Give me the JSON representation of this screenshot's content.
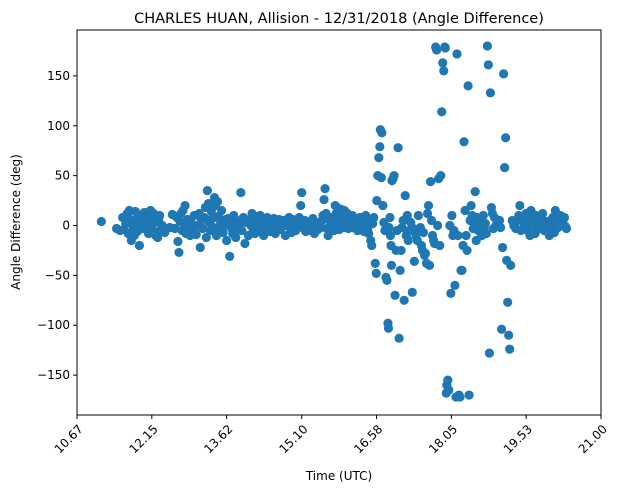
{
  "chart_data": {
    "type": "scatter",
    "title": "CHARLES HUAN, Allision - 12/31/2018 (Angle Difference)",
    "xlabel": "Time (UTC)",
    "ylabel": "Angle Difference (deg)",
    "xlim": [
      10.67,
      21.0
    ],
    "ylim": [
      -190,
      196
    ],
    "x_ticks": [
      "10.67",
      "12.15",
      "13.62",
      "15.10",
      "16.58",
      "18.05",
      "19.53",
      "21.00"
    ],
    "x_tick_values": [
      10.67,
      12.145,
      13.62,
      15.1,
      16.575,
      18.05,
      19.525,
      21.0
    ],
    "y_ticks": [
      -150,
      -100,
      -50,
      0,
      50,
      100,
      150
    ],
    "grid": false,
    "marker_color": "#1f77b4",
    "points": [
      [
        11.15,
        4
      ],
      [
        11.45,
        -3
      ],
      [
        11.52,
        -5
      ],
      [
        11.57,
        8
      ],
      [
        11.6,
        -4
      ],
      [
        11.63,
        2
      ],
      [
        11.66,
        12
      ],
      [
        11.68,
        -8
      ],
      [
        11.7,
        15
      ],
      [
        11.72,
        6
      ],
      [
        11.74,
        -15
      ],
      [
        11.76,
        3
      ],
      [
        11.78,
        -2
      ],
      [
        11.8,
        -10
      ],
      [
        11.82,
        14
      ],
      [
        11.84,
        5
      ],
      [
        11.86,
        -6
      ],
      [
        11.88,
        9
      ],
      [
        11.9,
        -20
      ],
      [
        11.92,
        2
      ],
      [
        11.94,
        11
      ],
      [
        11.96,
        -3
      ],
      [
        11.98,
        7
      ],
      [
        12.0,
        13
      ],
      [
        12.02,
        -1
      ],
      [
        12.04,
        4
      ],
      [
        12.06,
        10
      ],
      [
        12.08,
        -8
      ],
      [
        12.1,
        6
      ],
      [
        12.12,
        15
      ],
      [
        12.14,
        0
      ],
      [
        12.16,
        -5
      ],
      [
        12.18,
        12
      ],
      [
        12.2,
        3
      ],
      [
        12.22,
        -10
      ],
      [
        12.24,
        8
      ],
      [
        12.26,
        -12
      ],
      [
        12.28,
        5
      ],
      [
        12.3,
        10
      ],
      [
        12.32,
        -4
      ],
      [
        12.35,
        0
      ],
      [
        12.4,
        -7
      ],
      [
        12.5,
        -2
      ],
      [
        12.55,
        11
      ],
      [
        12.6,
        -3
      ],
      [
        12.64,
        8
      ],
      [
        12.66,
        -16
      ],
      [
        12.68,
        -27
      ],
      [
        12.7,
        4
      ],
      [
        12.72,
        12
      ],
      [
        12.74,
        -5
      ],
      [
        12.76,
        15
      ],
      [
        12.78,
        2
      ],
      [
        12.8,
        20
      ],
      [
        12.82,
        -8
      ],
      [
        12.85,
        6
      ],
      [
        12.88,
        -3
      ],
      [
        12.9,
        -10
      ],
      [
        12.92,
        3
      ],
      [
        12.95,
        -6
      ],
      [
        12.98,
        10
      ],
      [
        13.02,
        -9
      ],
      [
        13.05,
        0
      ],
      [
        13.08,
        12
      ],
      [
        13.1,
        -22
      ],
      [
        13.12,
        5
      ],
      [
        13.15,
        -3
      ],
      [
        13.18,
        8
      ],
      [
        13.2,
        18
      ],
      [
        13.22,
        -12
      ],
      [
        13.24,
        35
      ],
      [
        13.26,
        22
      ],
      [
        13.28,
        3
      ],
      [
        13.3,
        -5
      ],
      [
        13.32,
        14
      ],
      [
        13.34,
        7
      ],
      [
        13.36,
        -2
      ],
      [
        13.38,
        28
      ],
      [
        13.4,
        20
      ],
      [
        13.42,
        -10
      ],
      [
        13.44,
        24
      ],
      [
        13.46,
        9
      ],
      [
        13.48,
        -4
      ],
      [
        13.5,
        3
      ],
      [
        13.52,
        15
      ],
      [
        13.55,
        -7
      ],
      [
        13.58,
        0
      ],
      [
        13.6,
        6
      ],
      [
        13.62,
        -15
      ],
      [
        13.65,
        7
      ],
      [
        13.68,
        -31
      ],
      [
        13.7,
        4
      ],
      [
        13.72,
        -3
      ],
      [
        13.74,
        -8
      ],
      [
        13.76,
        10
      ],
      [
        13.78,
        2
      ],
      [
        13.8,
        -12
      ],
      [
        13.82,
        5
      ],
      [
        13.85,
        -4
      ],
      [
        13.88,
        0
      ],
      [
        13.9,
        33
      ],
      [
        13.92,
        -5
      ],
      [
        13.95,
        8
      ],
      [
        13.98,
        -18
      ],
      [
        14.02,
        3
      ],
      [
        14.05,
        -10
      ],
      [
        14.08,
        6
      ],
      [
        14.1,
        0
      ],
      [
        14.12,
        12
      ],
      [
        14.14,
        -3
      ],
      [
        14.16,
        5
      ],
      [
        14.18,
        -8
      ],
      [
        14.2,
        9
      ],
      [
        14.22,
        2
      ],
      [
        14.25,
        -5
      ],
      [
        14.28,
        10
      ],
      [
        14.3,
        -2
      ],
      [
        14.32,
        5
      ],
      [
        14.35,
        -10
      ],
      [
        14.38,
        3
      ],
      [
        14.4,
        -3
      ],
      [
        14.42,
        8
      ],
      [
        14.45,
        0
      ],
      [
        14.48,
        -6
      ],
      [
        14.5,
        4
      ],
      [
        14.52,
        -2
      ],
      [
        14.55,
        7
      ],
      [
        14.58,
        -8
      ],
      [
        14.6,
        3
      ],
      [
        14.62,
        0
      ],
      [
        14.65,
        6
      ],
      [
        14.68,
        -4
      ],
      [
        14.7,
        2
      ],
      [
        14.72,
        -1
      ],
      [
        14.75,
        5
      ],
      [
        14.78,
        -10
      ],
      [
        14.8,
        0
      ],
      [
        14.82,
        3
      ],
      [
        14.85,
        8
      ],
      [
        14.88,
        -3
      ],
      [
        14.9,
        -7
      ],
      [
        14.92,
        6
      ],
      [
        14.95,
        2
      ],
      [
        14.98,
        -5
      ],
      [
        15.0,
        4
      ],
      [
        15.02,
        -2
      ],
      [
        15.05,
        8
      ],
      [
        15.08,
        20
      ],
      [
        15.1,
        33
      ],
      [
        15.12,
        0
      ],
      [
        15.14,
        -3
      ],
      [
        15.16,
        5
      ],
      [
        15.18,
        -6
      ],
      [
        15.2,
        2
      ],
      [
        15.22,
        0
      ],
      [
        15.25,
        -5
      ],
      [
        15.28,
        3
      ],
      [
        15.3,
        -1
      ],
      [
        15.32,
        7
      ],
      [
        15.35,
        -8
      ],
      [
        15.38,
        2
      ],
      [
        15.4,
        0
      ],
      [
        15.42,
        -4
      ],
      [
        15.45,
        3
      ],
      [
        15.48,
        -2
      ],
      [
        15.5,
        5
      ],
      [
        15.52,
        10
      ],
      [
        15.54,
        26
      ],
      [
        15.56,
        37
      ],
      [
        15.58,
        12
      ],
      [
        15.6,
        -3
      ],
      [
        15.62,
        -10
      ],
      [
        15.65,
        5
      ],
      [
        15.68,
        0
      ],
      [
        15.7,
        8
      ],
      [
        15.72,
        2
      ],
      [
        15.74,
        -5
      ],
      [
        15.76,
        20
      ],
      [
        15.78,
        12
      ],
      [
        15.8,
        18
      ],
      [
        15.82,
        3
      ],
      [
        15.84,
        -4
      ],
      [
        15.86,
        10
      ],
      [
        15.88,
        16
      ],
      [
        15.9,
        5
      ],
      [
        15.92,
        -2
      ],
      [
        15.94,
        15
      ],
      [
        15.96,
        8
      ],
      [
        15.98,
        0
      ],
      [
        16.0,
        12
      ],
      [
        16.02,
        -3
      ],
      [
        16.05,
        6
      ],
      [
        16.08,
        0
      ],
      [
        16.1,
        10
      ],
      [
        16.12,
        -2
      ],
      [
        16.15,
        4
      ],
      [
        16.18,
        0
      ],
      [
        16.2,
        -5
      ],
      [
        16.22,
        3
      ],
      [
        16.25,
        8
      ],
      [
        16.28,
        -2
      ],
      [
        16.3,
        2
      ],
      [
        16.33,
        -6
      ],
      [
        16.36,
        10
      ],
      [
        16.38,
        0
      ],
      [
        16.4,
        -3
      ],
      [
        16.42,
        -8
      ],
      [
        16.44,
        5
      ],
      [
        16.46,
        -15
      ],
      [
        16.48,
        -20
      ],
      [
        16.5,
        2
      ],
      [
        16.52,
        8
      ],
      [
        16.55,
        -38
      ],
      [
        16.57,
        -48
      ],
      [
        16.58,
        25
      ],
      [
        16.6,
        50
      ],
      [
        16.62,
        68
      ],
      [
        16.64,
        79
      ],
      [
        16.65,
        96
      ],
      [
        16.67,
        48
      ],
      [
        16.68,
        93
      ],
      [
        16.7,
        20
      ],
      [
        16.72,
        3
      ],
      [
        16.74,
        -5
      ],
      [
        16.76,
        -52
      ],
      [
        16.78,
        -55
      ],
      [
        16.8,
        -98
      ],
      [
        16.81,
        -103
      ],
      [
        16.82,
        -2
      ],
      [
        16.84,
        8
      ],
      [
        16.85,
        -10
      ],
      [
        16.86,
        -20
      ],
      [
        16.87,
        -40
      ],
      [
        16.88,
        45
      ],
      [
        16.9,
        47
      ],
      [
        16.92,
        50
      ],
      [
        16.94,
        -70
      ],
      [
        16.96,
        -25
      ],
      [
        16.98,
        -5
      ],
      [
        17.0,
        78
      ],
      [
        17.02,
        -113
      ],
      [
        17.04,
        -45
      ],
      [
        17.06,
        -25
      ],
      [
        17.08,
        -2
      ],
      [
        17.1,
        5
      ],
      [
        17.12,
        -75
      ],
      [
        17.14,
        30
      ],
      [
        17.16,
        -10
      ],
      [
        17.18,
        10
      ],
      [
        17.2,
        -15
      ],
      [
        17.22,
        -5
      ],
      [
        17.25,
        3
      ],
      [
        17.28,
        -67
      ],
      [
        17.3,
        -3
      ],
      [
        17.32,
        -36
      ],
      [
        17.35,
        -10
      ],
      [
        17.38,
        -15
      ],
      [
        17.4,
        10
      ],
      [
        17.42,
        -5
      ],
      [
        17.44,
        -2
      ],
      [
        17.46,
        -20
      ],
      [
        17.48,
        -25
      ],
      [
        17.5,
        -7
      ],
      [
        17.52,
        -30
      ],
      [
        17.54,
        -28
      ],
      [
        17.56,
        -38
      ],
      [
        17.58,
        12
      ],
      [
        17.6,
        20
      ],
      [
        17.62,
        -40
      ],
      [
        17.64,
        44
      ],
      [
        17.66,
        5
      ],
      [
        17.68,
        -10
      ],
      [
        17.7,
        -15
      ],
      [
        17.72,
        -18
      ],
      [
        17.74,
        179
      ],
      [
        17.76,
        176
      ],
      [
        17.78,
        0
      ],
      [
        17.8,
        47
      ],
      [
        17.82,
        -20
      ],
      [
        17.84,
        50
      ],
      [
        17.86,
        114
      ],
      [
        17.88,
        163
      ],
      [
        17.9,
        155
      ],
      [
        17.92,
        179
      ],
      [
        17.93,
        178
      ],
      [
        17.95,
        -168
      ],
      [
        17.96,
        -160
      ],
      [
        17.98,
        -155
      ],
      [
        18.0,
        -165
      ],
      [
        18.02,
        0
      ],
      [
        18.04,
        -68
      ],
      [
        18.06,
        10
      ],
      [
        18.08,
        -10
      ],
      [
        18.1,
        -5
      ],
      [
        18.12,
        -60
      ],
      [
        18.14,
        -172
      ],
      [
        18.16,
        172
      ],
      [
        18.18,
        -10
      ],
      [
        18.2,
        -170
      ],
      [
        18.22,
        -172
      ],
      [
        18.24,
        -45
      ],
      [
        18.26,
        -45
      ],
      [
        18.28,
        -20
      ],
      [
        18.3,
        84
      ],
      [
        18.32,
        15
      ],
      [
        18.34,
        -10
      ],
      [
        18.36,
        -25
      ],
      [
        18.38,
        140
      ],
      [
        18.4,
        -170
      ],
      [
        18.42,
        5
      ],
      [
        18.44,
        20
      ],
      [
        18.46,
        10
      ],
      [
        18.48,
        -3
      ],
      [
        18.5,
        5
      ],
      [
        18.52,
        34
      ],
      [
        18.54,
        -15
      ],
      [
        18.56,
        8
      ],
      [
        18.58,
        -5
      ],
      [
        18.6,
        0
      ],
      [
        18.62,
        3
      ],
      [
        18.65,
        -10
      ],
      [
        18.68,
        10
      ],
      [
        18.7,
        -2
      ],
      [
        18.72,
        2
      ],
      [
        18.74,
        -8
      ],
      [
        18.76,
        180
      ],
      [
        18.78,
        161
      ],
      [
        18.8,
        -128
      ],
      [
        18.82,
        133
      ],
      [
        18.84,
        18
      ],
      [
        18.86,
        12
      ],
      [
        18.88,
        -3
      ],
      [
        18.9,
        8
      ],
      [
        18.92,
        -1
      ],
      [
        18.95,
        3
      ],
      [
        18.98,
        0
      ],
      [
        19.0,
        5
      ],
      [
        19.02,
        -2
      ],
      [
        19.04,
        -104
      ],
      [
        19.06,
        -22
      ],
      [
        19.08,
        152
      ],
      [
        19.1,
        58
      ],
      [
        19.12,
        88
      ],
      [
        19.14,
        -35
      ],
      [
        19.16,
        -77
      ],
      [
        19.18,
        -110
      ],
      [
        19.2,
        -124
      ],
      [
        19.22,
        -40
      ],
      [
        19.25,
        5
      ],
      [
        19.28,
        0
      ],
      [
        19.3,
        3
      ],
      [
        19.32,
        -3
      ],
      [
        19.35,
        5
      ],
      [
        19.38,
        10
      ],
      [
        19.4,
        20
      ],
      [
        19.42,
        -5
      ],
      [
        19.45,
        8
      ],
      [
        19.48,
        2
      ],
      [
        19.5,
        0
      ],
      [
        19.52,
        12
      ],
      [
        19.55,
        -5
      ],
      [
        19.58,
        8
      ],
      [
        19.6,
        -10
      ],
      [
        19.62,
        15
      ],
      [
        19.65,
        3
      ],
      [
        19.68,
        0
      ],
      [
        19.7,
        -8
      ],
      [
        19.72,
        10
      ],
      [
        19.75,
        5
      ],
      [
        19.78,
        -3
      ],
      [
        19.8,
        8
      ],
      [
        19.82,
        0
      ],
      [
        19.85,
        12
      ],
      [
        19.88,
        -5
      ],
      [
        19.9,
        4
      ],
      [
        19.92,
        2
      ],
      [
        19.95,
        -3
      ],
      [
        19.98,
        -10
      ],
      [
        20.0,
        5
      ],
      [
        20.02,
        0
      ],
      [
        20.05,
        8
      ],
      [
        20.08,
        -7
      ],
      [
        20.1,
        15
      ],
      [
        20.12,
        3
      ],
      [
        20.15,
        -2
      ],
      [
        20.18,
        6
      ],
      [
        20.2,
        10
      ],
      [
        20.22,
        0
      ],
      [
        20.25,
        5
      ],
      [
        20.28,
        8
      ],
      [
        20.3,
        -1
      ],
      [
        20.32,
        -3
      ]
    ]
  }
}
